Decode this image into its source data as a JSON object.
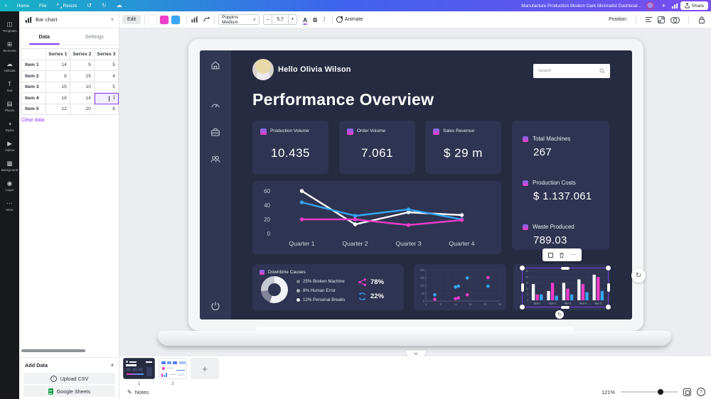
{
  "header": {
    "back": "‹",
    "home": "Home",
    "file": "File",
    "resize": "Resize",
    "title": "Manufacture Production Modern Dark Minimalist Dashboar...",
    "share": "Share"
  },
  "icons": {
    "undo": "↺",
    "redo": "↻",
    "cloud": "☁",
    "plus": "+",
    "more_dots": "⋯",
    "chevron_down": "∨",
    "chevron_up": "∧",
    "rotate": "↻",
    "help": "?",
    "add_page": "+",
    "pencil": "✎",
    "arrow_up": "↑",
    "minus": "–"
  },
  "toolbar": {
    "edit": "Edit",
    "font": "Poppins Medium",
    "font_size": "5.7",
    "text_color": "A",
    "bold": "B",
    "italic": "I",
    "animate": "Animate",
    "position": "Position",
    "colors": [
      "#ffffff",
      "#ee3fc9",
      "#3aa6f3"
    ]
  },
  "sidebar": {
    "items": [
      {
        "label": "Templates",
        "glyph": "◫"
      },
      {
        "label": "Elements",
        "glyph": "⊞"
      },
      {
        "label": "Uploads",
        "glyph": "☁"
      },
      {
        "label": "Text",
        "glyph": "T"
      },
      {
        "label": "Photos",
        "glyph": "▤"
      },
      {
        "label": "Styles",
        "glyph": "◑"
      },
      {
        "label": "Videos",
        "glyph": "▶"
      },
      {
        "label": "Background",
        "glyph": "▩"
      },
      {
        "label": "Logos",
        "glyph": "◉"
      },
      {
        "label": "More",
        "glyph": "⋯"
      }
    ]
  },
  "panel": {
    "chart_selector": "Bar chart",
    "tabs": [
      "Data",
      "Settings"
    ],
    "table": {
      "headers": [
        "Series 1",
        "Series 2",
        "Series 3"
      ],
      "rows": [
        [
          "Item 1",
          "14",
          "5",
          "5"
        ],
        [
          "Item 2",
          "8",
          "15",
          "4"
        ],
        [
          "Item 3",
          "15",
          "10",
          "5"
        ],
        [
          "Item 4",
          "18",
          "14",
          ""
        ],
        [
          "Item 5",
          "22",
          "20",
          "8"
        ]
      ]
    },
    "clear_data": "Clear data",
    "add_data": "Add Data",
    "upload_csv": "Upload CSV",
    "google_sheets": "Google Sheets"
  },
  "dashboard": {
    "greeting": "Hello Olivia Wilson",
    "search_placeholder": "Search",
    "title": "Performance Overview",
    "stat_cards": [
      {
        "label": "Production Volume",
        "value": "10.435"
      },
      {
        "label": "Order Volume",
        "value": "7.061"
      },
      {
        "label": "Sales Revenue",
        "value": "$ 29 m"
      }
    ],
    "side_stats": [
      {
        "label": "Total Machines",
        "value": "267"
      },
      {
        "label": "Production Costs",
        "value": "$ 1.137.061"
      },
      {
        "label": "Waste Produced",
        "value": "789.03"
      }
    ],
    "accent_pink": "#ee3cc8",
    "accent_blue": "#35a5f2"
  },
  "chart_data": [
    {
      "id": "quarterly-lines",
      "type": "line",
      "categories": [
        "Quarter 1",
        "Quarter 2",
        "Quarter 3",
        "Quarter 4"
      ],
      "series": [
        {
          "name": "Series 1",
          "color": "#ffffff",
          "values": [
            60,
            13,
            30,
            26
          ]
        },
        {
          "name": "Series 2",
          "color": "#35a5f2",
          "values": [
            44,
            25,
            34,
            20
          ]
        },
        {
          "name": "Series 3",
          "color": "#ee3cc8",
          "values": [
            20,
            20,
            12,
            19
          ]
        }
      ],
      "yticks": [
        0,
        20,
        40,
        60
      ],
      "ylim": [
        0,
        60
      ],
      "grid": false,
      "legend": "none"
    },
    {
      "id": "downtime-donut",
      "type": "pie",
      "title": "Downtime Causes",
      "slices": [
        {
          "label": "25% Broken Machine",
          "value": 25,
          "arc_color": "#f2f3f6",
          "dot_color": "#7e8290"
        },
        {
          "label": "8% Human Error",
          "value": 8,
          "arc_color": "#82869a",
          "dot_color": "#aeb2bd"
        },
        {
          "label": "12% Personal Breaks",
          "value": 12,
          "arc_color": "#c7cad4",
          "dot_color": "#eceef2"
        }
      ],
      "kpis": [
        {
          "icon": "share-nodes",
          "value": "78%",
          "color": "#ee3cc8"
        },
        {
          "icon": "refresh",
          "value": "22%",
          "color": "#35a5f2"
        }
      ]
    },
    {
      "id": "mini-scatter",
      "type": "scatter",
      "xticks": [
        0,
        5,
        10,
        15,
        20,
        25
      ],
      "yticks": [
        0,
        50,
        100,
        150,
        200
      ],
      "xlim": [
        0,
        25
      ],
      "ylim": [
        0,
        200
      ],
      "grid": true,
      "series": [
        {
          "name": "blue",
          "color": "#35a5f2",
          "points": [
            [
              3,
              40
            ],
            [
              10,
              90
            ],
            [
              11,
              95
            ],
            [
              14,
              148
            ],
            [
              21,
              95
            ]
          ]
        },
        {
          "name": "magenta",
          "color": "#ee3cc8",
          "points": [
            [
              3,
              10
            ],
            [
              10,
              15
            ],
            [
              11,
              20
            ],
            [
              14,
              40
            ],
            [
              21,
              150
            ]
          ]
        }
      ]
    },
    {
      "id": "items-bars",
      "type": "bar",
      "categories": [
        "Item 1",
        "Item 2",
        "Item 3",
        "Item 4",
        "Item 5"
      ],
      "series": [
        {
          "name": "Series 1",
          "color": "#f4f5f7",
          "values": [
            14,
            8,
            15,
            18,
            22
          ]
        },
        {
          "name": "Series 2",
          "color": "#ee3cc8",
          "values": [
            5,
            15,
            10,
            14,
            20
          ]
        },
        {
          "name": "Series 3",
          "color": "#35a5f2",
          "values": [
            5,
            4,
            5,
            7,
            8
          ]
        }
      ],
      "yticks": [
        0,
        5,
        10,
        15,
        20,
        25
      ],
      "ylim": [
        0,
        25
      ],
      "grid": true
    }
  ],
  "footer": {
    "notes": "Notes",
    "zoom": "121%",
    "pages": [
      "1",
      "2"
    ]
  }
}
